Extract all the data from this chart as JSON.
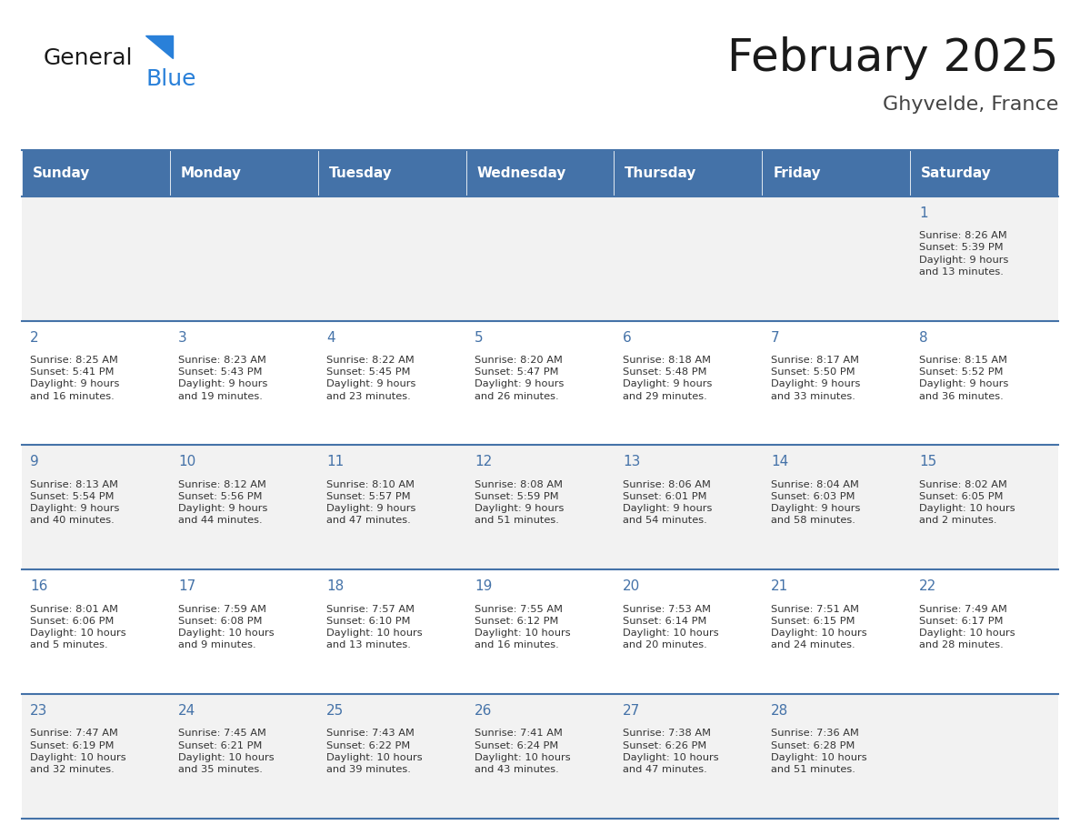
{
  "title": "February 2025",
  "subtitle": "Ghyvelde, France",
  "header_color": "#4472A8",
  "header_text_color": "#FFFFFF",
  "cell_bg_color": "#F2F2F2",
  "cell_bg_color2": "#FFFFFF",
  "day_number_color": "#4472A8",
  "text_color": "#333333",
  "line_color": "#4472A8",
  "days_of_week": [
    "Sunday",
    "Monday",
    "Tuesday",
    "Wednesday",
    "Thursday",
    "Friday",
    "Saturday"
  ],
  "weeks": [
    [
      {
        "day": null,
        "info": null
      },
      {
        "day": null,
        "info": null
      },
      {
        "day": null,
        "info": null
      },
      {
        "day": null,
        "info": null
      },
      {
        "day": null,
        "info": null
      },
      {
        "day": null,
        "info": null
      },
      {
        "day": 1,
        "info": "Sunrise: 8:26 AM\nSunset: 5:39 PM\nDaylight: 9 hours\nand 13 minutes."
      }
    ],
    [
      {
        "day": 2,
        "info": "Sunrise: 8:25 AM\nSunset: 5:41 PM\nDaylight: 9 hours\nand 16 minutes."
      },
      {
        "day": 3,
        "info": "Sunrise: 8:23 AM\nSunset: 5:43 PM\nDaylight: 9 hours\nand 19 minutes."
      },
      {
        "day": 4,
        "info": "Sunrise: 8:22 AM\nSunset: 5:45 PM\nDaylight: 9 hours\nand 23 minutes."
      },
      {
        "day": 5,
        "info": "Sunrise: 8:20 AM\nSunset: 5:47 PM\nDaylight: 9 hours\nand 26 minutes."
      },
      {
        "day": 6,
        "info": "Sunrise: 8:18 AM\nSunset: 5:48 PM\nDaylight: 9 hours\nand 29 minutes."
      },
      {
        "day": 7,
        "info": "Sunrise: 8:17 AM\nSunset: 5:50 PM\nDaylight: 9 hours\nand 33 minutes."
      },
      {
        "day": 8,
        "info": "Sunrise: 8:15 AM\nSunset: 5:52 PM\nDaylight: 9 hours\nand 36 minutes."
      }
    ],
    [
      {
        "day": 9,
        "info": "Sunrise: 8:13 AM\nSunset: 5:54 PM\nDaylight: 9 hours\nand 40 minutes."
      },
      {
        "day": 10,
        "info": "Sunrise: 8:12 AM\nSunset: 5:56 PM\nDaylight: 9 hours\nand 44 minutes."
      },
      {
        "day": 11,
        "info": "Sunrise: 8:10 AM\nSunset: 5:57 PM\nDaylight: 9 hours\nand 47 minutes."
      },
      {
        "day": 12,
        "info": "Sunrise: 8:08 AM\nSunset: 5:59 PM\nDaylight: 9 hours\nand 51 minutes."
      },
      {
        "day": 13,
        "info": "Sunrise: 8:06 AM\nSunset: 6:01 PM\nDaylight: 9 hours\nand 54 minutes."
      },
      {
        "day": 14,
        "info": "Sunrise: 8:04 AM\nSunset: 6:03 PM\nDaylight: 9 hours\nand 58 minutes."
      },
      {
        "day": 15,
        "info": "Sunrise: 8:02 AM\nSunset: 6:05 PM\nDaylight: 10 hours\nand 2 minutes."
      }
    ],
    [
      {
        "day": 16,
        "info": "Sunrise: 8:01 AM\nSunset: 6:06 PM\nDaylight: 10 hours\nand 5 minutes."
      },
      {
        "day": 17,
        "info": "Sunrise: 7:59 AM\nSunset: 6:08 PM\nDaylight: 10 hours\nand 9 minutes."
      },
      {
        "day": 18,
        "info": "Sunrise: 7:57 AM\nSunset: 6:10 PM\nDaylight: 10 hours\nand 13 minutes."
      },
      {
        "day": 19,
        "info": "Sunrise: 7:55 AM\nSunset: 6:12 PM\nDaylight: 10 hours\nand 16 minutes."
      },
      {
        "day": 20,
        "info": "Sunrise: 7:53 AM\nSunset: 6:14 PM\nDaylight: 10 hours\nand 20 minutes."
      },
      {
        "day": 21,
        "info": "Sunrise: 7:51 AM\nSunset: 6:15 PM\nDaylight: 10 hours\nand 24 minutes."
      },
      {
        "day": 22,
        "info": "Sunrise: 7:49 AM\nSunset: 6:17 PM\nDaylight: 10 hours\nand 28 minutes."
      }
    ],
    [
      {
        "day": 23,
        "info": "Sunrise: 7:47 AM\nSunset: 6:19 PM\nDaylight: 10 hours\nand 32 minutes."
      },
      {
        "day": 24,
        "info": "Sunrise: 7:45 AM\nSunset: 6:21 PM\nDaylight: 10 hours\nand 35 minutes."
      },
      {
        "day": 25,
        "info": "Sunrise: 7:43 AM\nSunset: 6:22 PM\nDaylight: 10 hours\nand 39 minutes."
      },
      {
        "day": 26,
        "info": "Sunrise: 7:41 AM\nSunset: 6:24 PM\nDaylight: 10 hours\nand 43 minutes."
      },
      {
        "day": 27,
        "info": "Sunrise: 7:38 AM\nSunset: 6:26 PM\nDaylight: 10 hours\nand 47 minutes."
      },
      {
        "day": 28,
        "info": "Sunrise: 7:36 AM\nSunset: 6:28 PM\nDaylight: 10 hours\nand 51 minutes."
      },
      {
        "day": null,
        "info": null
      }
    ]
  ],
  "logo_text_general": "General",
  "logo_text_blue": "Blue",
  "logo_color_general": "#1a1a1a",
  "logo_color_blue": "#2980D9"
}
